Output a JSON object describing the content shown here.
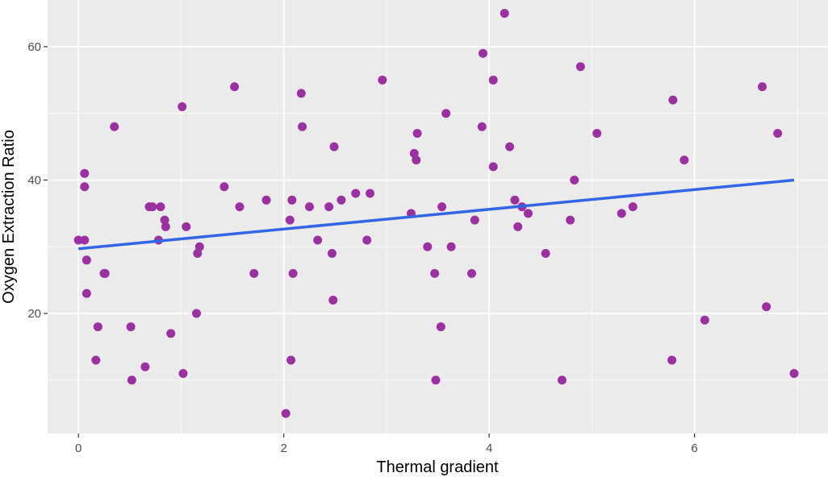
{
  "chart_data": {
    "type": "scatter",
    "title": "",
    "xlabel": "Thermal gradient",
    "ylabel": "Oxygen Extraction Ratio",
    "xlim": [
      -0.3,
      7.3
    ],
    "ylim": [
      2,
      67
    ],
    "x_ticks": [
      0,
      2,
      4,
      6
    ],
    "x_tick_labels": [
      "0",
      "2",
      "4",
      "6"
    ],
    "y_ticks": [
      20,
      40,
      60
    ],
    "y_tick_labels": [
      "20",
      "40",
      "60"
    ],
    "grid": true,
    "legend": "none",
    "colors": {
      "panel": "#ebebeb",
      "grid": "#ffffff",
      "points": "#9b30a0",
      "fit_line": "#3366e6"
    },
    "points": [
      [
        0.0,
        31
      ],
      [
        0.06,
        31
      ],
      [
        0.06,
        41
      ],
      [
        0.06,
        39
      ],
      [
        0.08,
        28
      ],
      [
        0.08,
        23
      ],
      [
        0.17,
        13
      ],
      [
        0.19,
        18
      ],
      [
        0.25,
        26
      ],
      [
        0.26,
        26
      ],
      [
        0.35,
        48
      ],
      [
        0.51,
        18
      ],
      [
        0.52,
        10
      ],
      [
        0.65,
        12
      ],
      [
        0.69,
        36
      ],
      [
        0.72,
        36
      ],
      [
        0.78,
        31
      ],
      [
        0.8,
        36
      ],
      [
        0.84,
        34
      ],
      [
        0.85,
        33
      ],
      [
        0.9,
        17
      ],
      [
        1.01,
        51
      ],
      [
        1.02,
        11
      ],
      [
        1.05,
        33
      ],
      [
        1.15,
        20
      ],
      [
        1.16,
        29
      ],
      [
        1.18,
        30
      ],
      [
        1.42,
        39
      ],
      [
        1.52,
        54
      ],
      [
        1.57,
        36
      ],
      [
        1.71,
        26
      ],
      [
        1.83,
        37
      ],
      [
        2.02,
        5
      ],
      [
        2.06,
        34
      ],
      [
        2.07,
        13
      ],
      [
        2.08,
        37
      ],
      [
        2.09,
        26
      ],
      [
        2.17,
        53
      ],
      [
        2.18,
        48
      ],
      [
        2.25,
        36
      ],
      [
        2.33,
        31
      ],
      [
        2.44,
        36
      ],
      [
        2.47,
        29
      ],
      [
        2.48,
        22
      ],
      [
        2.49,
        45
      ],
      [
        2.56,
        37
      ],
      [
        2.7,
        38
      ],
      [
        2.81,
        31
      ],
      [
        2.84,
        38
      ],
      [
        2.96,
        55
      ],
      [
        3.24,
        35
      ],
      [
        3.27,
        44
      ],
      [
        3.29,
        43
      ],
      [
        3.3,
        47
      ],
      [
        3.4,
        30
      ],
      [
        3.47,
        26
      ],
      [
        3.48,
        10
      ],
      [
        3.53,
        18
      ],
      [
        3.54,
        36
      ],
      [
        3.58,
        50
      ],
      [
        3.63,
        30
      ],
      [
        3.83,
        26
      ],
      [
        3.86,
        34
      ],
      [
        3.93,
        48
      ],
      [
        3.94,
        59
      ],
      [
        4.04,
        55
      ],
      [
        4.04,
        42
      ],
      [
        4.15,
        65
      ],
      [
        4.2,
        45
      ],
      [
        4.25,
        37
      ],
      [
        4.28,
        33
      ],
      [
        4.32,
        36
      ],
      [
        4.38,
        35
      ],
      [
        4.55,
        29
      ],
      [
        4.71,
        10
      ],
      [
        4.79,
        34
      ],
      [
        4.83,
        40
      ],
      [
        4.89,
        57
      ],
      [
        5.05,
        47
      ],
      [
        5.29,
        35
      ],
      [
        5.4,
        36
      ],
      [
        5.78,
        13
      ],
      [
        5.79,
        52
      ],
      [
        5.9,
        43
      ],
      [
        6.1,
        19
      ],
      [
        6.66,
        54
      ],
      [
        6.7,
        21
      ],
      [
        6.81,
        47
      ],
      [
        6.97,
        11
      ]
    ],
    "fit_line": {
      "x": [
        0.0,
        6.97
      ],
      "y": [
        29.7,
        40.0
      ]
    }
  }
}
